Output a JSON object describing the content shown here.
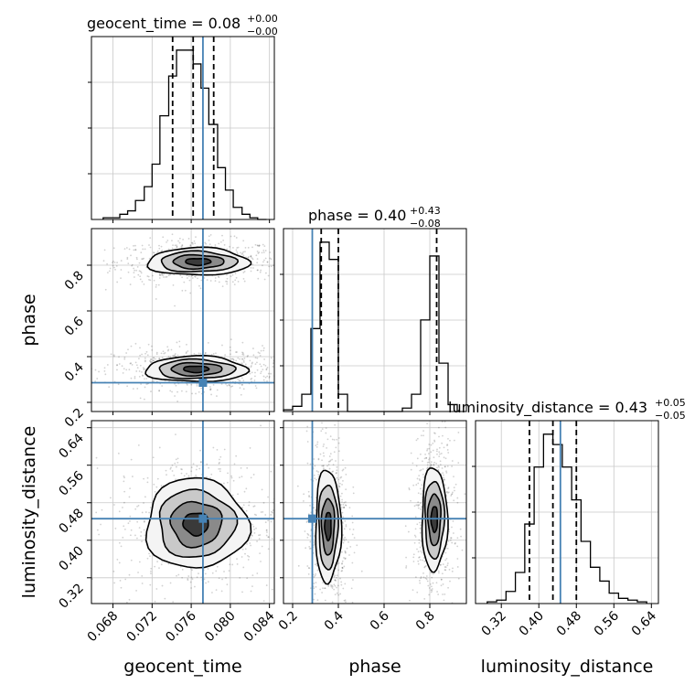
{
  "chart_data": {
    "type": "corner",
    "parameters": [
      "geocent_time",
      "phase",
      "luminosity_distance"
    ],
    "titles": [
      {
        "prefix": "geocent_time = ",
        "value": "0.08",
        "plus": "+0.00",
        "minus": "−0.00"
      },
      {
        "prefix": "phase = ",
        "value": "0.40",
        "plus": "+0.43",
        "minus": "−0.08"
      },
      {
        "prefix": "luminosity_distance = ",
        "value": "0.43",
        "plus": "+0.05",
        "minus": "−0.05"
      }
    ],
    "ranges": {
      "geocent_time": [
        0.0658,
        0.0845
      ],
      "phase": [
        0.16,
        0.96
      ],
      "luminosity_distance": [
        0.265,
        0.655
      ]
    },
    "ticks": {
      "geocent_time": {
        "values": [
          0.068,
          0.072,
          0.076,
          0.08,
          0.084
        ],
        "labels": [
          "0.068",
          "0.072",
          "0.076",
          "0.080",
          "0.084"
        ]
      },
      "phase": {
        "values": [
          0.2,
          0.4,
          0.6,
          0.8
        ],
        "labels": [
          "0.2",
          "0.4",
          "0.6",
          "0.8"
        ]
      },
      "luminosity_distance": {
        "values": [
          0.32,
          0.4,
          0.48,
          0.56,
          0.64
        ],
        "labels": [
          "0.32",
          "0.40",
          "0.48",
          "0.56",
          "0.64"
        ]
      }
    },
    "truths": {
      "geocent_time": 0.0772,
      "phase": 0.286,
      "luminosity_distance": 0.446
    },
    "quantiles": {
      "geocent_time": [
        0.0741,
        0.0762,
        0.0783
      ],
      "phase": [
        0.325,
        0.4,
        0.83
      ],
      "luminosity_distance": [
        0.38,
        0.43,
        0.48
      ]
    },
    "marginals": {
      "geocent_time": {
        "edges": [
          0.067,
          0.0678,
          0.0687,
          0.0695,
          0.0703,
          0.0712,
          0.072,
          0.0728,
          0.0737,
          0.0745,
          0.0753,
          0.0762,
          0.077,
          0.0778,
          0.0787,
          0.0795,
          0.0803,
          0.0812,
          0.082,
          0.0828,
          0.0837
        ],
        "counts": [
          1,
          1,
          3,
          5,
          11,
          19,
          32,
          60,
          83,
          98,
          98,
          90,
          76,
          55,
          30,
          17,
          7,
          3,
          1,
          0
        ]
      },
      "phase": {
        "edges": [
          0.16,
          0.2,
          0.24,
          0.28,
          0.32,
          0.36,
          0.4,
          0.44,
          0.48,
          0.52,
          0.56,
          0.6,
          0.64,
          0.68,
          0.72,
          0.76,
          0.8,
          0.84,
          0.88,
          0.92
        ],
        "counts": [
          1,
          3,
          10,
          48,
          98,
          88,
          10,
          0,
          0,
          0,
          0,
          0,
          0,
          2,
          10,
          53,
          90,
          28,
          4
        ]
      },
      "luminosity_distance": {
        "edges": [
          0.29,
          0.31,
          0.33,
          0.35,
          0.37,
          0.39,
          0.41,
          0.43,
          0.45,
          0.47,
          0.49,
          0.51,
          0.53,
          0.55,
          0.57,
          0.59,
          0.61,
          0.63
        ],
        "counts": [
          1,
          2,
          7,
          18,
          46,
          79,
          98,
          92,
          79,
          60,
          36,
          21,
          13,
          6,
          3,
          2,
          1
        ]
      }
    },
    "joint_2d": [
      {
        "x": "geocent_time",
        "y": "phase",
        "modes": [
          {
            "cx": 0.0767,
            "cy": 0.815,
            "sx": 0.0026,
            "sy": 0.03
          },
          {
            "cx": 0.0765,
            "cy": 0.345,
            "sx": 0.0026,
            "sy": 0.028
          }
        ]
      },
      {
        "x": "geocent_time",
        "y": "luminosity_distance",
        "modes": [
          {
            "cx": 0.0765,
            "cy": 0.435,
            "sx": 0.0026,
            "sy": 0.048
          }
        ]
      },
      {
        "x": "phase",
        "y": "luminosity_distance",
        "modes": [
          {
            "cx": 0.355,
            "cy": 0.43,
            "sx": 0.028,
            "sy": 0.06
          },
          {
            "cx": 0.82,
            "cy": 0.445,
            "sx": 0.028,
            "sy": 0.055
          }
        ]
      }
    ],
    "truth_color": "#4682b4",
    "hist_color": "#000000",
    "grid": true
  }
}
